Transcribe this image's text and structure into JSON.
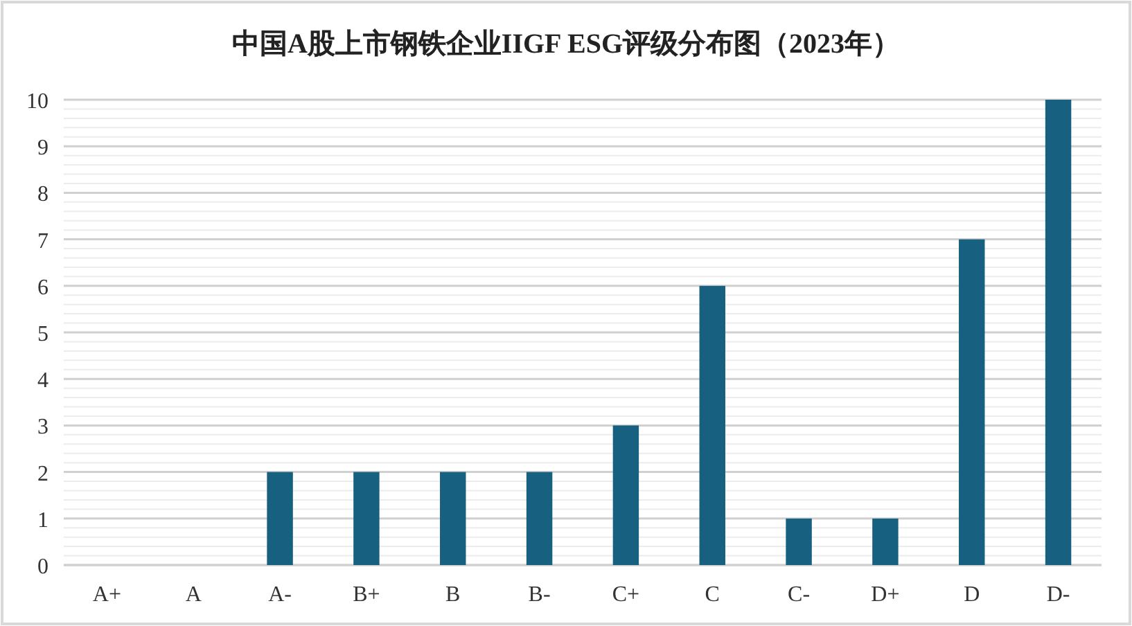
{
  "chart_data": {
    "type": "bar",
    "title": "中国A股上市钢铁企业IIGF ESG评级分布图（2023年）",
    "categories": [
      "A+",
      "A",
      "A-",
      "B+",
      "B",
      "B-",
      "C+",
      "C",
      "C-",
      "D+",
      "D",
      "D-"
    ],
    "values": [
      0,
      0,
      2,
      2,
      2,
      2,
      3,
      6,
      1,
      1,
      7,
      10
    ],
    "color": "#17607f",
    "ylim": [
      0,
      10
    ],
    "yticks": [
      0,
      {
        "value": 0.2,
        "label": null
      },
      {
        "value": 0.4,
        "label": null
      },
      {
        "value": 0.6,
        "label": null
      },
      {
        "value": 0.8,
        "label": null
      },
      1,
      {
        "value": 1.2,
        "label": null
      },
      {
        "value": 1.4,
        "label": null
      },
      {
        "value": 1.6,
        "label": null
      },
      {
        "value": 1.8,
        "label": null
      },
      2,
      {
        "value": 2.2,
        "label": null
      },
      {
        "value": 2.4,
        "label": null
      },
      {
        "value": 2.6,
        "label": null
      },
      {
        "value": 2.8,
        "label": null
      },
      3,
      {
        "value": 3.2,
        "label": null
      },
      {
        "value": 3.4,
        "label": null
      },
      {
        "value": 3.6,
        "label": null
      },
      {
        "value": 3.8,
        "label": null
      },
      4,
      {
        "value": 4.2,
        "label": null
      },
      {
        "value": 4.4,
        "label": null
      },
      {
        "value": 4.6,
        "label": null
      },
      {
        "value": 4.8,
        "label": null
      },
      5,
      {
        "value": 5.2,
        "label": null
      },
      {
        "value": 5.4,
        "label": null
      },
      {
        "value": 5.6,
        "label": null
      },
      {
        "value": 5.8,
        "label": null
      },
      6,
      {
        "value": 6.2,
        "label": null
      },
      {
        "value": 6.4,
        "label": null
      },
      {
        "value": 6.6,
        "label": null
      },
      {
        "value": 6.8,
        "label": null
      },
      7,
      {
        "value": 7.2,
        "label": null
      },
      {
        "value": 7.4,
        "label": null
      },
      {
        "value": 7.6,
        "label": null
      },
      {
        "value": 7.8,
        "label": null
      },
      8,
      {
        "value": 8.2,
        "label": null
      },
      {
        "value": 8.4,
        "label": null
      },
      {
        "value": 8.6,
        "label": null
      },
      {
        "value": 8.8,
        "label": null
      },
      9,
      {
        "value": 9.2,
        "label": null
      },
      {
        "value": 9.4,
        "label": null
      },
      {
        "value": 9.6,
        "label": null
      },
      {
        "value": 9.8,
        "label": null
      },
      10
    ],
    "grid": "y"
  }
}
